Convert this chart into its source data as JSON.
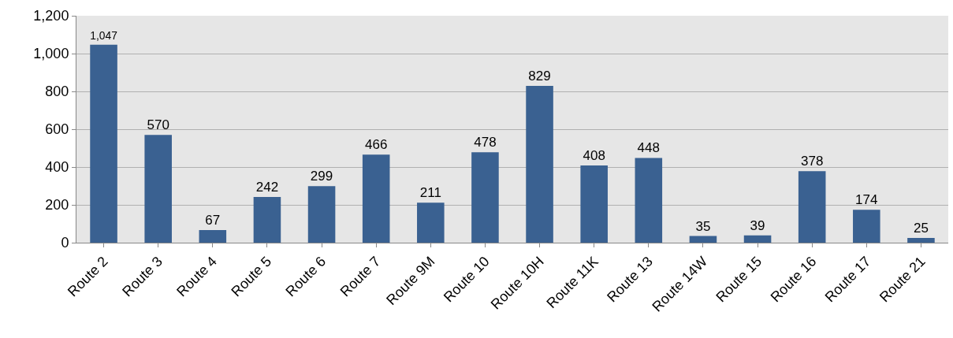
{
  "chart_data": {
    "type": "bar",
    "categories": [
      "Route 2",
      "Route 3",
      "Route 4",
      "Route 5",
      "Route 6",
      "Route 7",
      "Route 9M",
      "Route 10",
      "Route 10H",
      "Route 11K",
      "Route 13",
      "Route 14W",
      "Route 15",
      "Route 16",
      "Route 17",
      "Route 21"
    ],
    "values": [
      1047,
      570,
      67,
      242,
      299,
      466,
      211,
      478,
      829,
      408,
      448,
      35,
      39,
      378,
      174,
      25
    ],
    "value_labels": [
      "1,047",
      "570",
      "67",
      "242",
      "299",
      "466",
      "211",
      "478",
      "829",
      "408",
      "448",
      "35",
      "39",
      "378",
      "174",
      "25"
    ],
    "color": "#3a6191",
    "ylim": [
      0,
      1200
    ],
    "yticks": [
      {
        "value": 0,
        "label": "0"
      },
      {
        "value": 200,
        "label": "200"
      },
      {
        "value": 400,
        "label": "400"
      },
      {
        "value": 600,
        "label": "600"
      },
      {
        "value": 800,
        "label": "800"
      },
      {
        "value": 1000,
        "label": "1,000"
      },
      {
        "value": 1200,
        "label": "1,200"
      }
    ],
    "grid": "y"
  }
}
